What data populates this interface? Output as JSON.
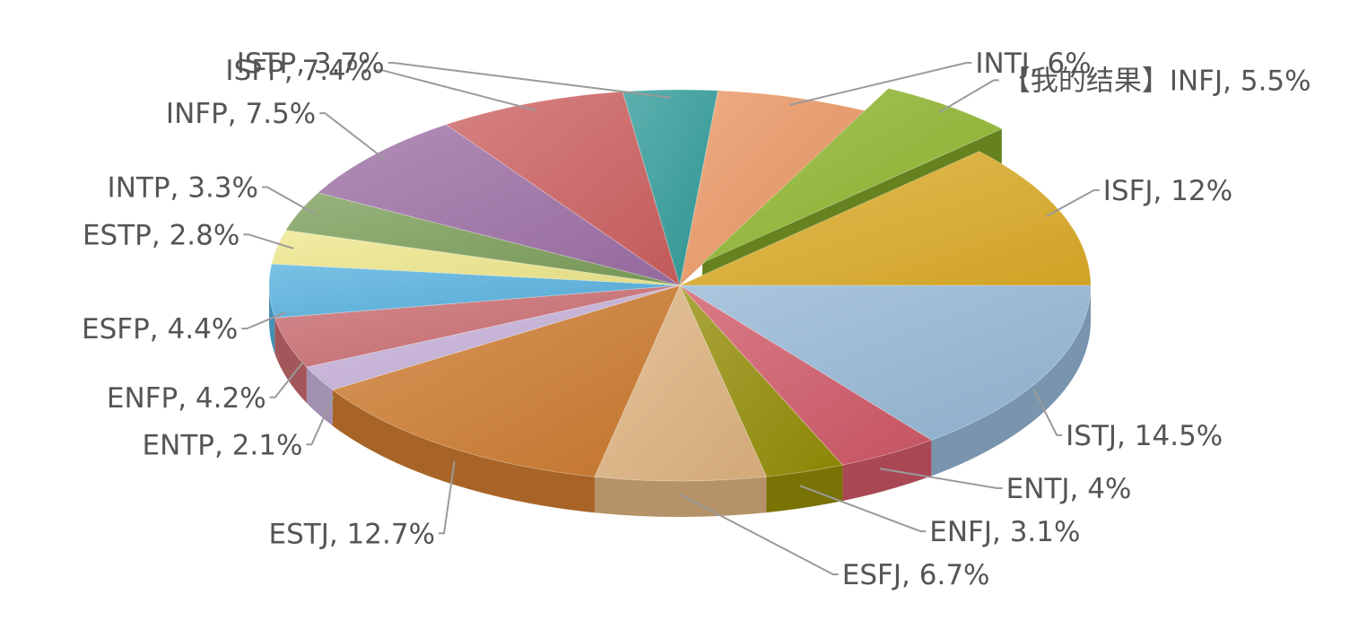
{
  "chart_data": {
    "type": "pie",
    "style": "3d-exploded-highlight",
    "title": "",
    "highlighted": "INFJ",
    "slices": [
      {
        "key": "ISTJ",
        "label": "ISTJ, 14.5%",
        "value": 14.5,
        "color": "#93b6d4"
      },
      {
        "key": "ENTJ",
        "label": "ENTJ, 4%",
        "value": 4,
        "color": "#cf5766"
      },
      {
        "key": "ENFJ",
        "label": "ENFJ, 3.1%",
        "value": 3.1,
        "color": "#928c05"
      },
      {
        "key": "ESFJ",
        "label": "ESFJ, 6.7%",
        "value": 6.7,
        "color": "#ddb27e"
      },
      {
        "key": "ESTJ",
        "label": "ESTJ, 12.7%",
        "value": 12.7,
        "color": "#cc7a2e"
      },
      {
        "key": "ENTP",
        "label": "ENTP, 2.1%",
        "value": 2.1,
        "color": "#c5b0d8"
      },
      {
        "key": "ENFP",
        "label": "ENFP, 4.2%",
        "value": 4.2,
        "color": "#c86a6e"
      },
      {
        "key": "ESFP",
        "label": "ESFP, 4.4%",
        "value": 4.4,
        "color": "#55b0de"
      },
      {
        "key": "ESTP",
        "label": "ESTP, 2.8%",
        "value": 2.8,
        "color": "#eee68c"
      },
      {
        "key": "INTP",
        "label": "INTP, 3.3%",
        "value": 3.3,
        "color": "#7b9d58"
      },
      {
        "key": "INFP",
        "label": "INFP, 7.5%",
        "value": 7.5,
        "color": "#9c6ea4"
      },
      {
        "key": "ISFP",
        "label": "ISFP, 7.4%",
        "value": 7.4,
        "color": "#cc5f5f"
      },
      {
        "key": "ISTP",
        "label": "ISTP, 3.7%",
        "value": 3.7,
        "color": "#2f9b98"
      },
      {
        "key": "INTJ",
        "label": "INTJ, 6%",
        "value": 6,
        "color": "#e99561"
      },
      {
        "key": "INFJ",
        "label": "【我的结果】INFJ, 5.5%",
        "value": 5.5,
        "color": "#8db42c"
      },
      {
        "key": "ISFJ",
        "label": "ISFJ, 12%",
        "value": 12,
        "color": "#dbab27"
      }
    ]
  }
}
